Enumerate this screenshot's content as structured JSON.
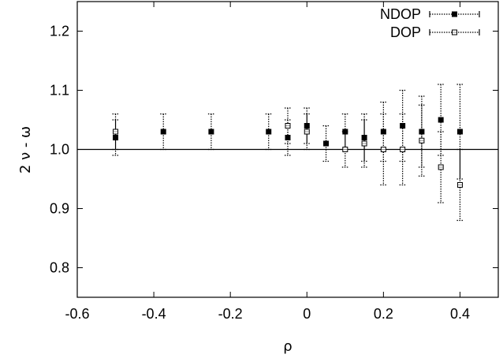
{
  "chart_data": {
    "type": "scatter",
    "xlabel": "ρ",
    "ylabel": "2 ν - ω",
    "xlim": [
      -0.6,
      0.5
    ],
    "ylim": [
      0.75,
      1.25
    ],
    "x_ticks": [
      "-0.6",
      "-0.4",
      "-0.2",
      "0",
      "0.2",
      "0.4"
    ],
    "y_ticks": [
      "0.8",
      "0.9",
      "1.0",
      "1.1",
      "1.2"
    ],
    "reference_line_y": 1.0,
    "legend_position": "top-right",
    "series": [
      {
        "name": "NDOP",
        "marker": "filled-square",
        "points": [
          {
            "x": -0.5,
            "y": 1.02,
            "err": 0.03
          },
          {
            "x": -0.375,
            "y": 1.03,
            "err": 0.03
          },
          {
            "x": -0.25,
            "y": 1.03,
            "err": 0.03
          },
          {
            "x": -0.1,
            "y": 1.03,
            "err": 0.03
          },
          {
            "x": -0.05,
            "y": 1.02,
            "err": 0.03
          },
          {
            "x": 0.0,
            "y": 1.04,
            "err": 0.03
          },
          {
            "x": 0.05,
            "y": 1.01,
            "err": 0.03
          },
          {
            "x": 0.1,
            "y": 1.03,
            "err": 0.03
          },
          {
            "x": 0.15,
            "y": 1.02,
            "err": 0.04
          },
          {
            "x": 0.2,
            "y": 1.03,
            "err": 0.05
          },
          {
            "x": 0.25,
            "y": 1.04,
            "err": 0.06
          },
          {
            "x": 0.3,
            "y": 1.03,
            "err": 0.06
          },
          {
            "x": 0.35,
            "y": 1.05,
            "err": 0.06
          },
          {
            "x": 0.4,
            "y": 1.03,
            "err": 0.08
          }
        ]
      },
      {
        "name": "DOP",
        "marker": "open-square",
        "points": [
          {
            "x": -0.5,
            "y": 1.03,
            "err": 0.03
          },
          {
            "x": -0.05,
            "y": 1.04,
            "err": 0.03
          },
          {
            "x": 0.0,
            "y": 1.03,
            "err": 0.03
          },
          {
            "x": 0.1,
            "y": 1.0,
            "err": 0.03
          },
          {
            "x": 0.15,
            "y": 1.01,
            "err": 0.04
          },
          {
            "x": 0.2,
            "y": 1.0,
            "err": 0.06
          },
          {
            "x": 0.25,
            "y": 1.0,
            "err": 0.06
          },
          {
            "x": 0.3,
            "y": 1.015,
            "err": 0.06
          },
          {
            "x": 0.35,
            "y": 0.97,
            "err": 0.06
          },
          {
            "x": 0.4,
            "y": 0.94,
            "err": 0.06
          }
        ]
      }
    ]
  }
}
